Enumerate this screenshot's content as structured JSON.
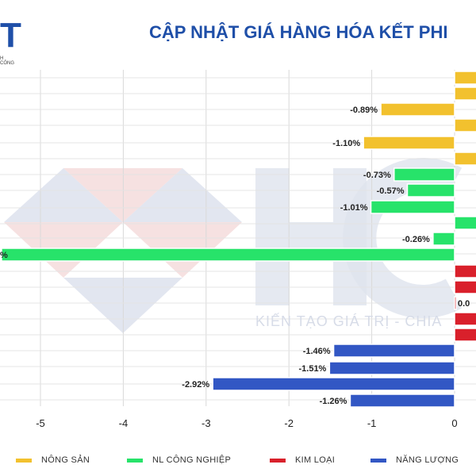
{
  "header": {
    "logo_text": "T",
    "logo_sub": "H CÔNG",
    "title": "CẬP NHẬT GIÁ HÀNG HÓA KẾT PHI",
    "watermark": "KIẾN TẠO GIÁ TRỊ - CHIA"
  },
  "colors": {
    "nong_san": "#f2c12e",
    "nl_cong_nghiep": "#27e36a",
    "kim_loai": "#d9202b",
    "nang_luong": "#3257c4",
    "title": "#1f4fa8"
  },
  "legend": [
    {
      "label": "NÔNG SẢN",
      "color": "#f2c12e"
    },
    {
      "label": "NL CÔNG NGHIỆP",
      "color": "#27e36a"
    },
    {
      "label": "KIM LOẠI",
      "color": "#d9202b"
    },
    {
      "label": "NĂNG LƯỢNG",
      "color": "#3257c4"
    }
  ],
  "chart_data": {
    "type": "bar",
    "orientation": "horizontal",
    "x_ticks": [
      -5,
      -4,
      -3,
      -2,
      -1,
      0
    ],
    "xlim": [
      -5.47,
      0.25
    ],
    "grid": true,
    "series": [
      {
        "name": "NÔNG SẢN",
        "values": [
          0.3,
          0.3,
          -0.89,
          0.3,
          -1.1,
          0.3
        ],
        "labels": [
          "",
          "",
          "-0.89%",
          "",
          "-1.10%",
          ""
        ]
      },
      {
        "name": "NL CÔNG NGHIỆP",
        "values": [
          -0.73,
          -0.57,
          -1.01,
          0.3,
          -0.26,
          -5.47
        ],
        "labels": [
          "-0.73%",
          "-0.57%",
          "-1.01%",
          "",
          "-0.26%",
          "%"
        ]
      },
      {
        "name": "KIM LOẠI",
        "values": [
          0.3,
          0.3,
          0.02,
          0.3,
          0.3
        ],
        "labels": [
          "",
          "",
          "0.0",
          "",
          ""
        ]
      },
      {
        "name": "NĂNG LƯỢNG",
        "values": [
          -1.46,
          -1.51,
          -2.92,
          -1.26
        ],
        "labels": [
          "-1.46%",
          "-1.51%",
          "-2.92%",
          "-1.26%"
        ]
      }
    ]
  }
}
